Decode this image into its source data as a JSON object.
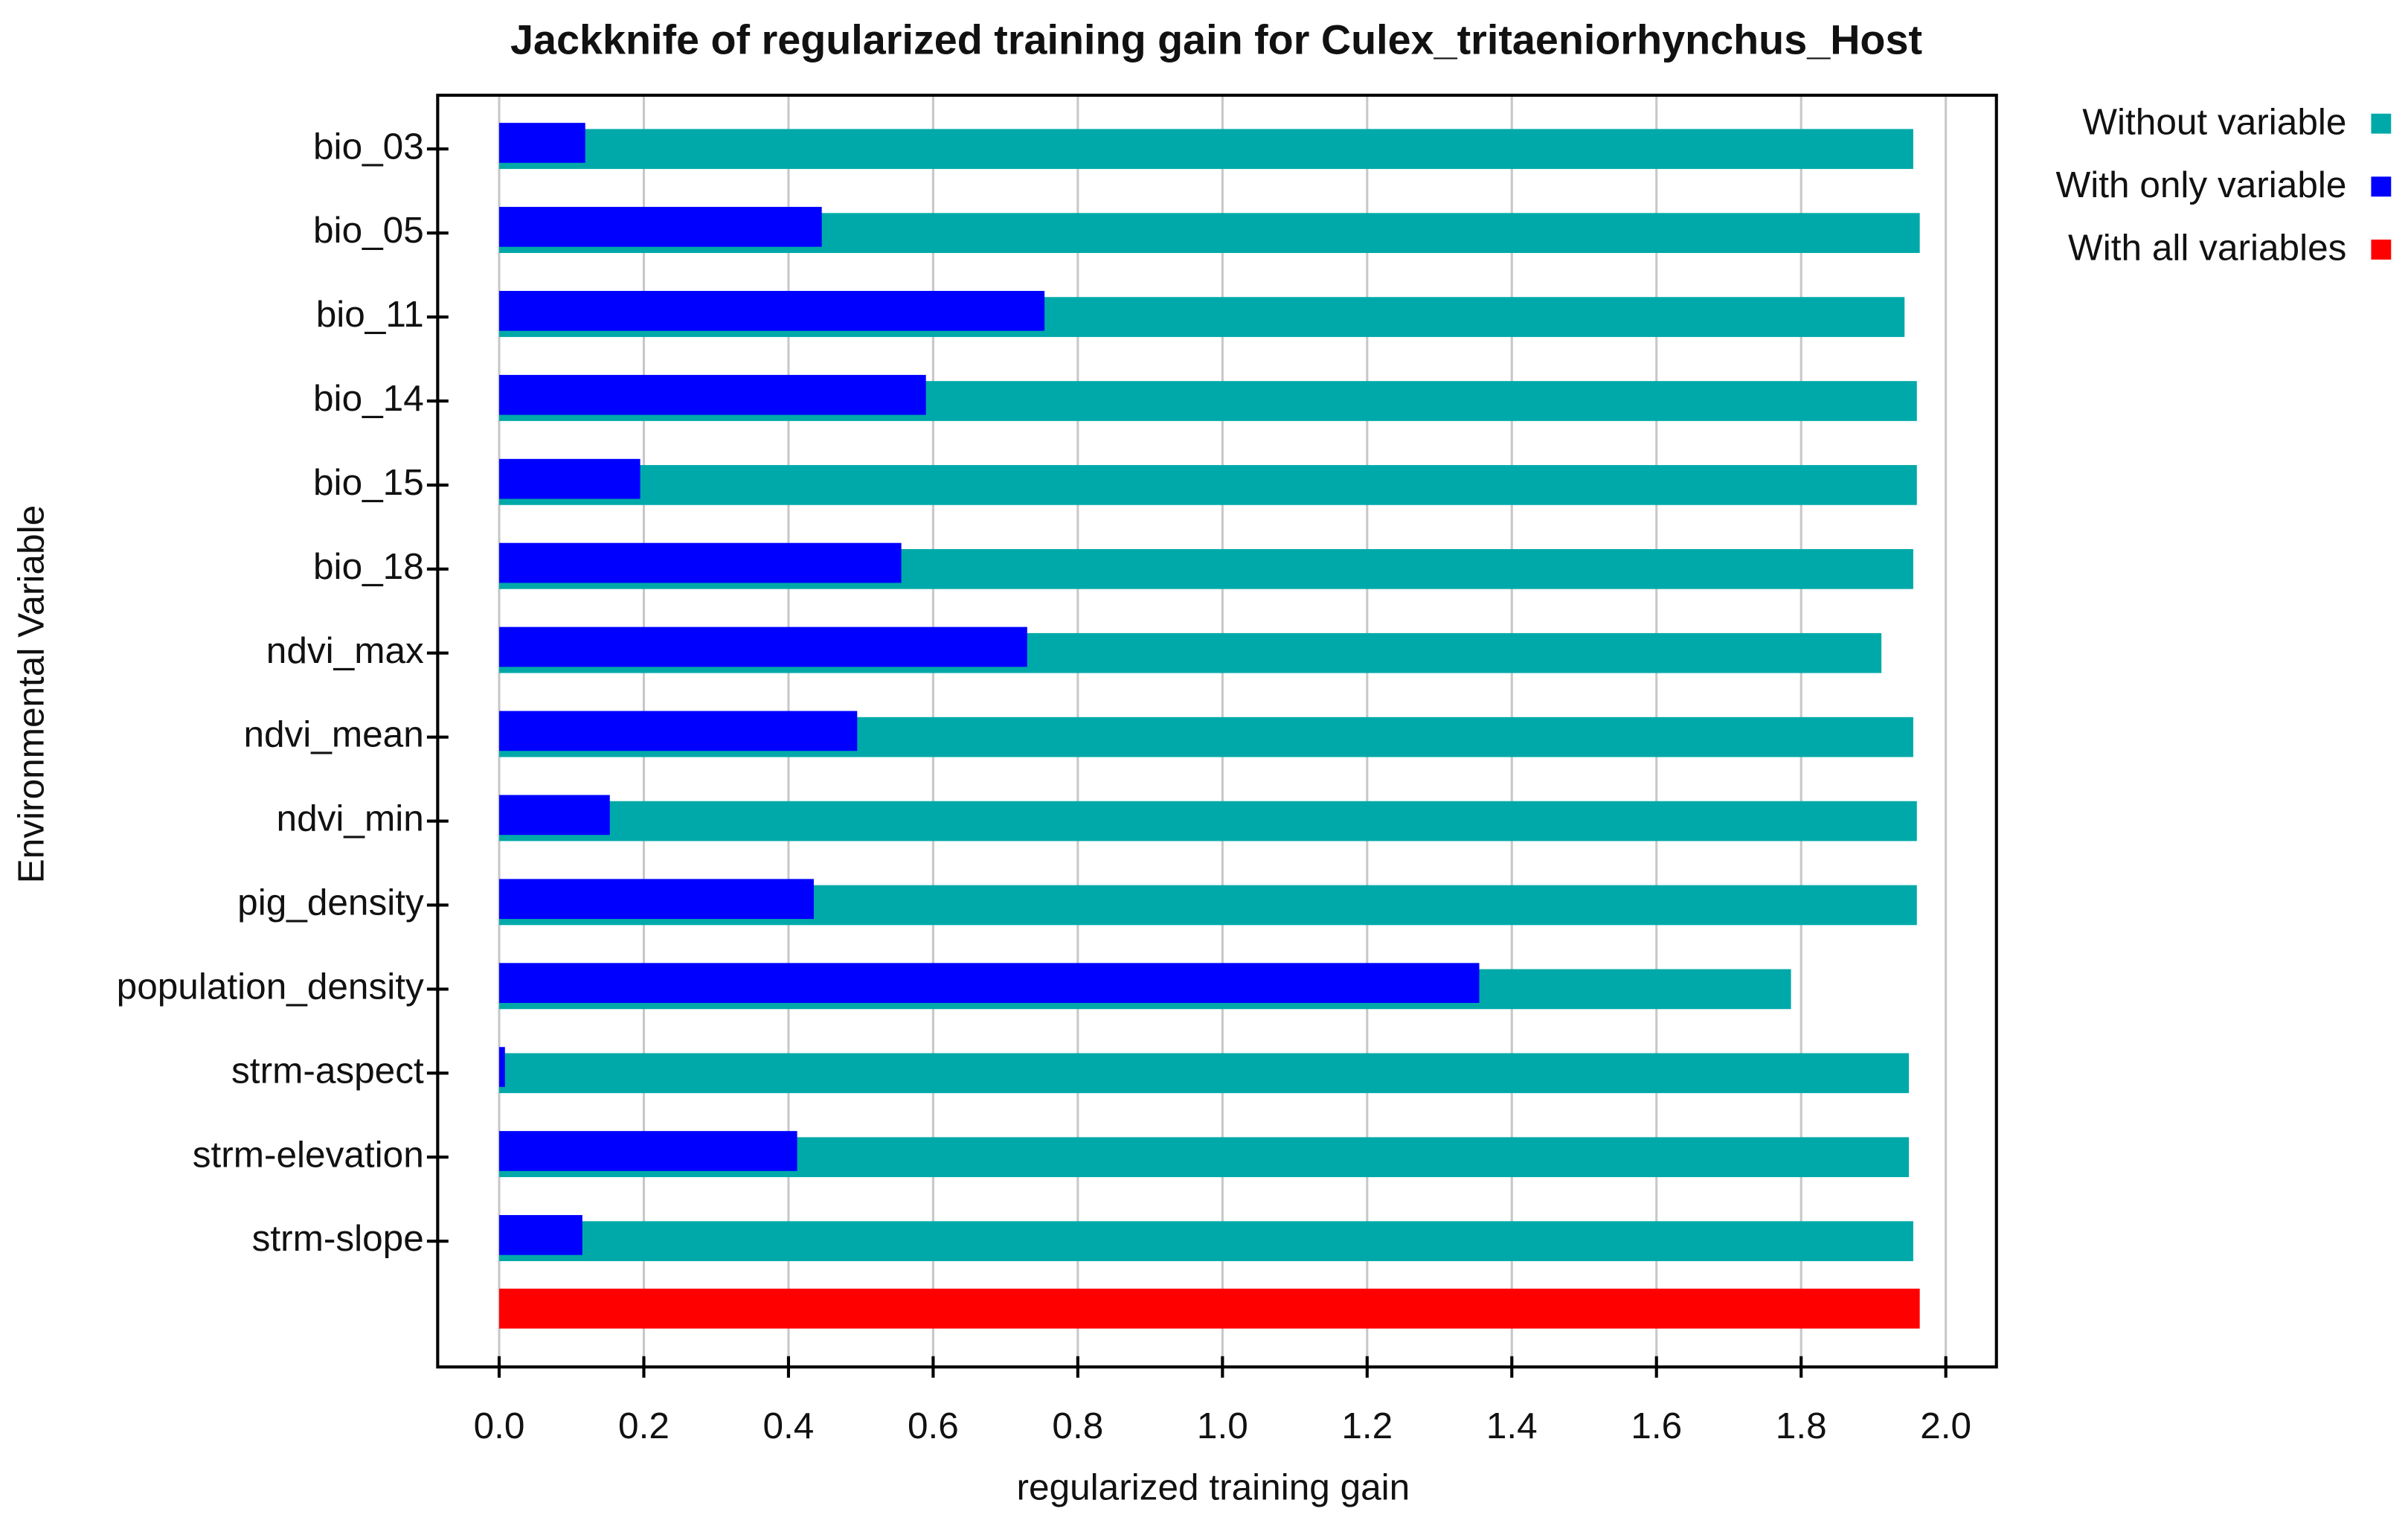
{
  "chart_data": {
    "type": "bar",
    "orientation": "horizontal",
    "title": "Jackknife of regularized training gain for Culex_tritaeniorhynchus_Host",
    "xlabel": "regularized training gain",
    "ylabel": "Environmental Variable",
    "categories": [
      "bio_03",
      "bio_05",
      "bio_11",
      "bio_14",
      "bio_15",
      "bio_18",
      "ndvi_max",
      "ndvi_mean",
      "ndvi_min",
      "pig_density",
      "population_density",
      "strm-aspect",
      "strm-elevation",
      "strm-slope",
      null
    ],
    "series": [
      {
        "name": "Without variable",
        "color": "#00a9a9",
        "values": [
          1.955,
          1.964,
          1.943,
          1.96,
          1.96,
          1.955,
          1.911,
          1.955,
          1.96,
          1.96,
          1.786,
          1.949,
          1.949,
          1.955,
          null
        ]
      },
      {
        "name": "With only variable",
        "color": "#0000ff",
        "values": [
          0.119,
          0.446,
          0.754,
          0.59,
          0.195,
          0.556,
          0.73,
          0.495,
          0.153,
          0.435,
          1.355,
          0.008,
          0.412,
          0.115,
          null
        ]
      },
      {
        "name": "With all variables",
        "color": "#ff0000",
        "values": [
          null,
          null,
          null,
          null,
          null,
          null,
          null,
          null,
          null,
          null,
          null,
          null,
          null,
          null,
          1.964
        ]
      }
    ],
    "xlim": [
      -0.085,
      2.07
    ],
    "xticks": [
      {
        "value": 0,
        "label": "0.0"
      },
      0.2,
      0.4,
      0.6,
      0.8,
      {
        "value": 1,
        "label": "1.0"
      },
      1.2,
      1.4,
      1.6,
      1.8,
      {
        "value": 2,
        "label": "2.0"
      }
    ],
    "grid": true,
    "legend": "top-right"
  }
}
